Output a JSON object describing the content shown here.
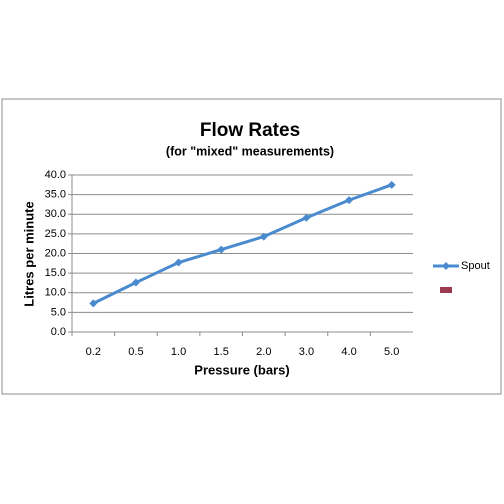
{
  "chart_data": {
    "type": "line",
    "title": "Flow Rates",
    "subtitle": "(for \"mixed\"  measurements)",
    "x_label": "Pressure (bars)",
    "y_label": "Litres per minute",
    "categories": [
      "0.2",
      "0.5",
      "1.0",
      "1.5",
      "2.0",
      "3.0",
      "4.0",
      "5.0"
    ],
    "series": [
      {
        "name": "Spout",
        "color": "#4a8bd0",
        "values": [
          7.3,
          12.6,
          17.7,
          21.0,
          24.3,
          29.1,
          33.6,
          37.5
        ]
      },
      {
        "color": "#9e3a4f",
        "values": [
          null,
          null,
          null,
          null,
          null,
          null,
          null,
          null
        ]
      }
    ],
    "ylim": [
      0,
      40
    ],
    "yticks": [
      {
        "value": 0,
        "label": "0.0"
      },
      {
        "value": 5,
        "label": "5.0"
      },
      {
        "value": 10,
        "label": "10.0"
      },
      {
        "value": 15,
        "label": "15.0"
      },
      {
        "value": 20,
        "label": "20.0"
      },
      {
        "value": 25,
        "label": "25.0"
      },
      {
        "value": 30,
        "label": "30.0"
      },
      {
        "value": 35,
        "label": "35.0"
      },
      {
        "value": 40,
        "label": "40.0"
      }
    ],
    "grid": true,
    "legend": "right"
  }
}
